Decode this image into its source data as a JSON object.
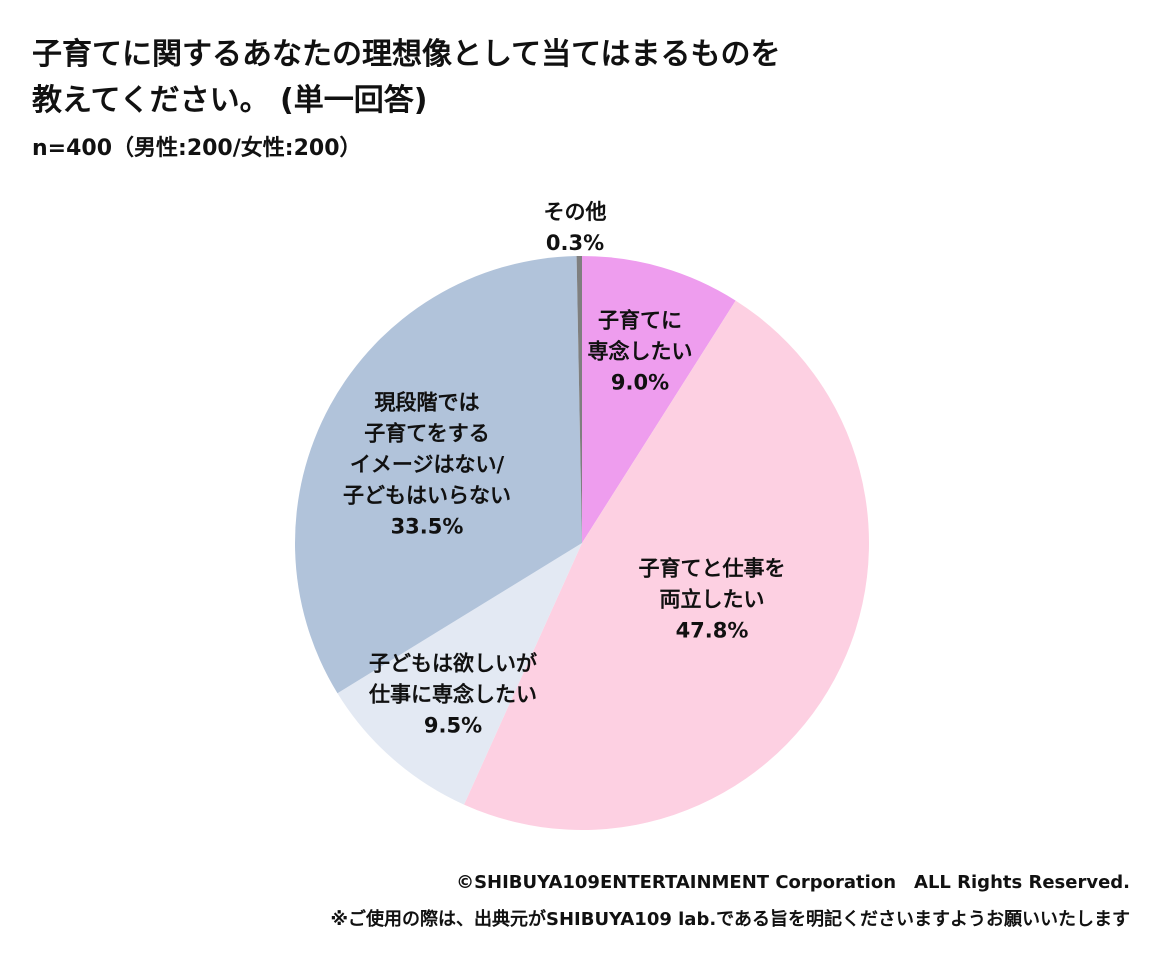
{
  "chart_data": {
    "type": "pie",
    "title": "子育てに関するあなたの理想像として当てはまるものを\n教えてください。 (単一回答)",
    "subtitle": "n=400（男性:200/女性:200）",
    "categories": [
      "子育てに\n専念したい",
      "子育てと仕事を\n両立したい",
      "子どもは欲しいが\n仕事に専念したい",
      "現段階では\n子育てをする\nイメージはない/\n子どもはいらない",
      "その他"
    ],
    "values": [
      9.0,
      47.8,
      9.5,
      33.5,
      0.3
    ],
    "value_labels": [
      "9.0%",
      "47.8%",
      "9.5%",
      "33.5%",
      "0.3%"
    ],
    "colors": [
      "#ee9dee",
      "#fdd0e2",
      "#e3e9f3",
      "#b1c3da",
      "#7f7f7f"
    ],
    "footer": [
      "©SHIBUYA109ENTERTAINMENT Corporation　ALL Rights Reserved.",
      "※ご使用の際は、出典元がSHIBUYA109 lab.である旨を明記くださいますようお願いいたします"
    ]
  }
}
